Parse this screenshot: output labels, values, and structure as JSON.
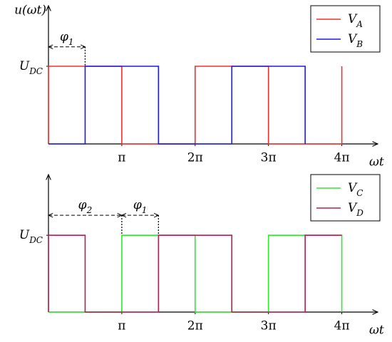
{
  "chart_data": [
    {
      "type": "line",
      "ylabel": "u(ωt)",
      "xlabel": "ωt",
      "xlim": [
        0,
        4.49
      ],
      "ylim": [
        0,
        1.78
      ],
      "xticks": [
        {
          "value": 1,
          "label": "π"
        },
        {
          "value": 2,
          "label": "2π"
        },
        {
          "value": 3,
          "label": "3π"
        },
        {
          "value": 4,
          "label": "4π"
        }
      ],
      "yticks": [
        {
          "value": 1,
          "label": "UDC"
        }
      ],
      "legend": "upper right",
      "series": [
        {
          "name": "VA",
          "color": "#f03030",
          "x": [
            0,
            0,
            1,
            1,
            2,
            2,
            3,
            3,
            4,
            4
          ],
          "values": [
            0,
            1,
            1,
            0,
            0,
            1,
            1,
            0,
            0,
            1
          ]
        },
        {
          "name": "VB",
          "color": "#1a1aee",
          "x": [
            0,
            0.5,
            0.5,
            1.5,
            1.5,
            2.5,
            2.5,
            3.5,
            3.5
          ],
          "values": [
            0,
            0,
            1,
            1,
            0,
            0,
            1,
            1,
            0
          ]
        }
      ],
      "annotations": [
        {
          "text": "φ1",
          "x": [
            0,
            0.5
          ],
          "y": 1.25
        }
      ]
    },
    {
      "type": "line",
      "xlabel": "ωt",
      "xlim": [
        0,
        4.49
      ],
      "ylim": [
        0,
        1.79
      ],
      "xticks": [
        {
          "value": 1,
          "label": "π"
        },
        {
          "value": 2,
          "label": "2π"
        },
        {
          "value": 3,
          "label": "3π"
        },
        {
          "value": 4,
          "label": "4π"
        }
      ],
      "yticks": [
        {
          "value": 1,
          "label": "UDC"
        }
      ],
      "legend": "upper right",
      "series": [
        {
          "name": "VC",
          "color": "#33e633",
          "x": [
            0,
            1,
            1,
            2,
            2,
            3,
            3,
            4,
            4
          ],
          "values": [
            0,
            0,
            1,
            1,
            0,
            0,
            1,
            1,
            0
          ]
        },
        {
          "name": "VD",
          "color": "#b0204c",
          "x": [
            0,
            0,
            0.5,
            0.5,
            1.5,
            1.5,
            2.5,
            2.5,
            3.5,
            3.5,
            4
          ],
          "values": [
            0,
            1,
            1,
            0,
            0,
            1,
            1,
            0,
            0,
            1,
            1
          ]
        }
      ],
      "annotations": [
        {
          "text": "φ2",
          "x": [
            0,
            1
          ],
          "y": 1.26
        },
        {
          "text": "φ1",
          "x": [
            1,
            1.5
          ],
          "y": 1.26
        }
      ]
    }
  ]
}
